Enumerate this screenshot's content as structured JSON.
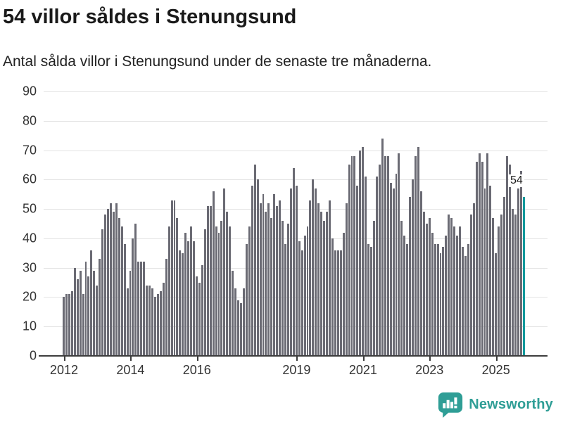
{
  "header": {
    "title": "54 villor såldes i Stenungsund",
    "subtitle": "Antal sålda villor i Stenungsund under de senaste tre månaderna."
  },
  "chart_data": {
    "type": "bar",
    "title": "54 villor såldes i Stenungsund",
    "subtitle": "Antal sålda villor i Stenungsund under de senaste tre månaderna.",
    "x_start": "2012-01",
    "x_end": "2025-11",
    "x_unit": "month",
    "ylim": [
      0,
      90
    ],
    "y_ticks": [
      0,
      10,
      20,
      30,
      40,
      50,
      60,
      70,
      80,
      90
    ],
    "grid": true,
    "x_tick_labels": [
      "2012",
      "2014",
      "2016",
      "2019",
      "2021",
      "2023",
      "2025"
    ],
    "x_tick_month_indices": [
      0,
      24,
      48,
      84,
      108,
      132,
      156
    ],
    "values": [
      20,
      21,
      21,
      22,
      30,
      26,
      29,
      21,
      32,
      27,
      36,
      29,
      24,
      33,
      43,
      48,
      50,
      52,
      49,
      52,
      47,
      44,
      38,
      23,
      29,
      40,
      45,
      32,
      32,
      32,
      24,
      24,
      23,
      20,
      21,
      22,
      25,
      33,
      44,
      53,
      53,
      47,
      36,
      35,
      42,
      39,
      44,
      39,
      27,
      25,
      31,
      43,
      51,
      51,
      56,
      44,
      42,
      46,
      57,
      49,
      44,
      29,
      23,
      19,
      18,
      23,
      38,
      44,
      58,
      65,
      60,
      52,
      55,
      49,
      52,
      47,
      55,
      51,
      53,
      46,
      38,
      45,
      57,
      64,
      58,
      39,
      36,
      41,
      44,
      53,
      60,
      57,
      52,
      49,
      46,
      49,
      53,
      40,
      36,
      36,
      36,
      42,
      52,
      65,
      68,
      68,
      58,
      70,
      71,
      61,
      38,
      37,
      46,
      61,
      65,
      74,
      68,
      68,
      59,
      57,
      62,
      69,
      46,
      41,
      38,
      54,
      60,
      68,
      71,
      56,
      49,
      45,
      47,
      42,
      38,
      38,
      35,
      37,
      41,
      48,
      47,
      44,
      41,
      44,
      37,
      34,
      38,
      48,
      52,
      66,
      69,
      66,
      57,
      69,
      58,
      47,
      35,
      44,
      48,
      54,
      68,
      65,
      50,
      48,
      57,
      63,
      54
    ],
    "bar_color": "#6b6b74",
    "highlight_last": true,
    "highlight_color": "#12999c",
    "annotation": {
      "label": "54",
      "value": 54
    }
  },
  "footer": {
    "brand": "Newsworthy",
    "brand_color": "#2f9e96"
  }
}
